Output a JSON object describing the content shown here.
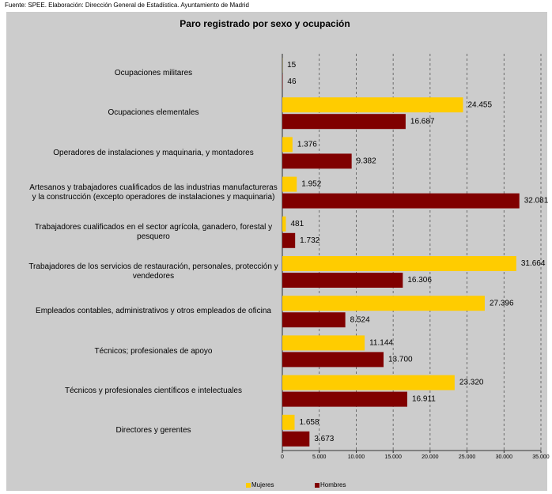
{
  "chart_data": {
    "type": "hbar",
    "source": "Fuente: SPEE. Elaboración: Dirección General de Estadística. Ayuntamiento de Madrid",
    "title": "Paro registrado por sexo y ocupación",
    "categories": [
      "Ocupaciones militares",
      "Ocupaciones elementales",
      "Operadores de instalaciones y maquinaria, y montadores",
      "Artesanos y trabajadores cualificados de las industrias manufactureras y la construcción (excepto operadores de instalaciones y maquinaria)",
      "Trabajadores cualificados en el sector agrícola, ganadero, forestal y pesquero",
      "Trabajadores de los servicios de restauración, personales, protección y vendedores",
      "Empleados contables, administrativos y otros empleados de oficina",
      "Técnicos; profesionales de apoyo",
      "Técnicos y profesionales científicos e intelectuales",
      "Directores y gerentes"
    ],
    "series": [
      {
        "name": "Mujeres",
        "color": "#ffcc00",
        "values": [
          15,
          24455,
          1376,
          1952,
          481,
          31664,
          27396,
          11144,
          23320,
          1658
        ],
        "value_labels": [
          "15",
          "24.455",
          "1.376",
          "1.952",
          "481",
          "31.664",
          "27.396",
          "11.144",
          "23.320",
          "1.658"
        ]
      },
      {
        "name": "Hombres",
        "color": "#800000",
        "values": [
          46,
          16687,
          9382,
          32081,
          1732,
          16306,
          8524,
          13700,
          16911,
          3673
        ],
        "value_labels": [
          "46",
          "16.687",
          "9.382",
          "32.081",
          "1.732",
          "16.306",
          "8.524",
          "13.700",
          "16.911",
          "3.673"
        ]
      }
    ],
    "xlim": [
      0,
      35000
    ],
    "xticks": [
      0,
      {
        "value": 5000,
        "label": "5.000"
      },
      {
        "value": 10000,
        "label": "10.000"
      },
      {
        "value": 15000,
        "label": "15.000"
      },
      {
        "value": 20000,
        "label": "20.000"
      },
      {
        "value": 25000,
        "label": "25.000"
      },
      {
        "value": 30000,
        "label": "30.000"
      },
      {
        "value": 35000,
        "label": "35.000"
      }
    ],
    "grid": true
  }
}
